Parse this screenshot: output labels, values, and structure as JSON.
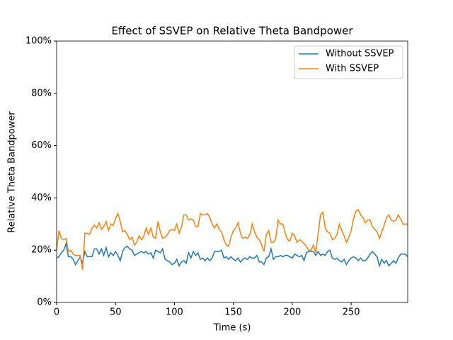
{
  "chart_data": {
    "type": "line",
    "title": "Effect of SSVEP on Relative Theta Bandpower",
    "xlabel": "Time (s)",
    "ylabel": "Relative Theta Bandpower",
    "xlim": [
      0,
      298
    ],
    "xticks": [
      0,
      50,
      100,
      150,
      200,
      250
    ],
    "ylim": [
      0,
      100
    ],
    "yticks": [
      {
        "value": 0,
        "label": "0%"
      },
      {
        "value": 20,
        "label": "20%"
      },
      {
        "value": 40,
        "label": "40%"
      },
      {
        "value": 60,
        "label": "60%"
      },
      {
        "value": 80,
        "label": "80%"
      },
      {
        "value": 100,
        "label": "100%"
      }
    ],
    "legend": "upper right",
    "x": [
      0,
      2,
      4,
      6,
      8,
      10,
      12,
      14,
      16,
      18,
      20,
      22,
      24,
      26,
      28,
      30,
      32,
      34,
      36,
      38,
      40,
      42,
      44,
      46,
      48,
      50,
      52,
      54,
      56,
      58,
      60,
      62,
      64,
      66,
      68,
      70,
      72,
      74,
      76,
      78,
      80,
      82,
      84,
      86,
      88,
      90,
      92,
      94,
      96,
      98,
      100,
      102,
      104,
      106,
      108,
      110,
      112,
      114,
      116,
      118,
      120,
      122,
      124,
      126,
      128,
      130,
      132,
      134,
      136,
      138,
      140,
      142,
      144,
      146,
      148,
      150,
      152,
      154,
      156,
      158,
      160,
      162,
      164,
      166,
      168,
      170,
      172,
      174,
      176,
      178,
      180,
      182,
      184,
      186,
      188,
      190,
      192,
      194,
      196,
      198,
      200,
      202,
      204,
      206,
      208,
      210,
      212,
      214,
      216,
      218,
      220,
      222,
      224,
      226,
      228,
      230,
      232,
      234,
      236,
      238,
      240,
      242,
      244,
      246,
      248,
      250,
      252,
      254,
      256,
      258,
      260,
      262,
      264,
      266,
      268,
      270,
      272,
      274,
      276,
      278,
      280,
      282,
      284,
      286,
      288,
      290,
      292,
      294,
      296,
      298
    ],
    "series": [
      {
        "name": "Without SSVEP",
        "color": "#1f77b4",
        "values": [
          17,
          17.5,
          19,
          20,
          22.5,
          17.5,
          17.5,
          16.5,
          14.5,
          16,
          17.5,
          15,
          19.5,
          17.5,
          17.5,
          17.5,
          20.5,
          20.5,
          18.5,
          20.5,
          18,
          21,
          17.5,
          19,
          18,
          19.5,
          18,
          16,
          19.5,
          21,
          21.5,
          20.5,
          20,
          18,
          18.5,
          19,
          19.5,
          19,
          19.5,
          18.5,
          19,
          17,
          20,
          19.5,
          19,
          20.5,
          16.5,
          16,
          15.5,
          14.5,
          15,
          16.5,
          14,
          15.5,
          16,
          15,
          19,
          17,
          19.5,
          18,
          19,
          16.5,
          17,
          16,
          17,
          16,
          17,
          19.5,
          19.5,
          19.5,
          20,
          17,
          17.5,
          16.5,
          17.5,
          16.5,
          16,
          17,
          15.5,
          16.5,
          17,
          16.5,
          17.5,
          17,
          17,
          18,
          15.5,
          15.5,
          14.5,
          17,
          17.5,
          20.5,
          16.5,
          17.5,
          17.5,
          18,
          17.5,
          18,
          18,
          17.5,
          17,
          18.5,
          18,
          17.5,
          18,
          16,
          19,
          19.5,
          19.5,
          19.5,
          18,
          19.5,
          18,
          18.5,
          18,
          19.5,
          20,
          17,
          16.5,
          17,
          16,
          15.5,
          16.5,
          14.5,
          16,
          17,
          17.5,
          17,
          16,
          17,
          16,
          16,
          17,
          18.5,
          19.5,
          18.5,
          17.5,
          14,
          16.5,
          15,
          16,
          14,
          15,
          16,
          15,
          17,
          18.5,
          18.5,
          18.5,
          17.5
        ]
      },
      {
        "name": "With SSVEP",
        "color": "#ff7f0e",
        "values": [
          20,
          27.5,
          24.5,
          24,
          24.5,
          19.5,
          20,
          18.5,
          18,
          18,
          18,
          12.5,
          26.5,
          26.5,
          26,
          28.5,
          29.5,
          28.5,
          30.5,
          28,
          29,
          31,
          27.5,
          30,
          29.5,
          32,
          34,
          31,
          27,
          27.5,
          26,
          24,
          25,
          22,
          23,
          25.5,
          24,
          25.5,
          28.5,
          26,
          28.5,
          25,
          24.5,
          31,
          27,
          24.5,
          25,
          26,
          27.5,
          28,
          27.5,
          30,
          26.5,
          29,
          33.5,
          33.5,
          31.5,
          32,
          31.5,
          29,
          29,
          34,
          33.5,
          33.5,
          34,
          32.5,
          30,
          28.5,
          30,
          28,
          27,
          24,
          22,
          21.5,
          25,
          27.5,
          28.5,
          30.5,
          26.5,
          24.5,
          25,
          24.5,
          26,
          30,
          27,
          25,
          24,
          22,
          19.5,
          26,
          27.5,
          23,
          23,
          24.5,
          31.5,
          30,
          30,
          26.5,
          24,
          23.5,
          26.5,
          25.5,
          23,
          24,
          23.5,
          22.5,
          21.5,
          20,
          20,
          22,
          19,
          26.5,
          33.5,
          34.5,
          28.5,
          27,
          26.5,
          24,
          24.5,
          26,
          30,
          27.5,
          25.5,
          23,
          25,
          27.5,
          32,
          35,
          35.5,
          33.5,
          32.5,
          30.5,
          31.5,
          31.5,
          29,
          28,
          27,
          24.5,
          27,
          29.5,
          32.5,
          33.5,
          31.5,
          31,
          31.5,
          33.5,
          32,
          30,
          30,
          30
        ]
      }
    ]
  }
}
